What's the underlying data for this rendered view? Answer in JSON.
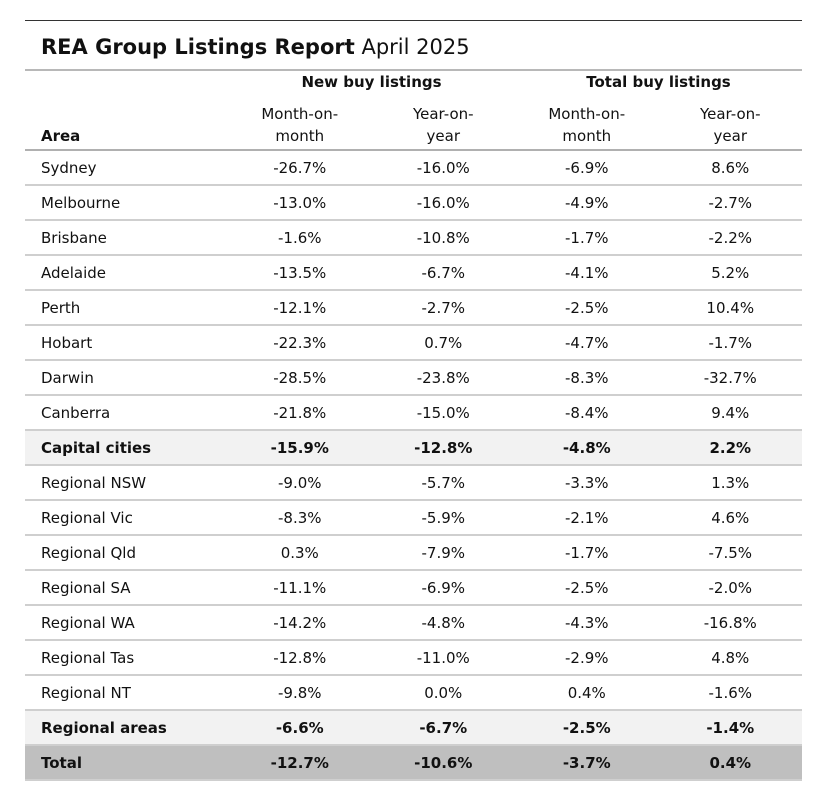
{
  "report": {
    "title_bold": "REA Group Listings Report",
    "title_light": "April 2025"
  },
  "headers": {
    "area": "Area",
    "groups": [
      "New buy listings",
      "Total buy listings"
    ],
    "sub": [
      [
        "Month-on-",
        "month"
      ],
      [
        "Year-on-",
        "year"
      ],
      [
        "Month-on-",
        "month"
      ],
      [
        "Year-on-",
        "year"
      ]
    ]
  },
  "rows": [
    {
      "area": "Sydney",
      "values": [
        "-26.7%",
        "-16.0%",
        "-6.9%",
        "8.6%"
      ],
      "kind": "normal"
    },
    {
      "area": "Melbourne",
      "values": [
        "-13.0%",
        "-16.0%",
        "-4.9%",
        "-2.7%"
      ],
      "kind": "normal"
    },
    {
      "area": "Brisbane",
      "values": [
        "-1.6%",
        "-10.8%",
        "-1.7%",
        "-2.2%"
      ],
      "kind": "normal"
    },
    {
      "area": "Adelaide",
      "values": [
        "-13.5%",
        "-6.7%",
        "-4.1%",
        "5.2%"
      ],
      "kind": "normal"
    },
    {
      "area": "Perth",
      "values": [
        "-12.1%",
        "-2.7%",
        "-2.5%",
        "10.4%"
      ],
      "kind": "normal"
    },
    {
      "area": "Hobart",
      "values": [
        "-22.3%",
        "0.7%",
        "-4.7%",
        "-1.7%"
      ],
      "kind": "normal"
    },
    {
      "area": "Darwin",
      "values": [
        "-28.5%",
        "-23.8%",
        "-8.3%",
        "-32.7%"
      ],
      "kind": "normal"
    },
    {
      "area": "Canberra",
      "values": [
        "-21.8%",
        "-15.0%",
        "-8.4%",
        "9.4%"
      ],
      "kind": "normal"
    },
    {
      "area": "Capital cities",
      "values": [
        "-15.9%",
        "-12.8%",
        "-4.8%",
        "2.2%"
      ],
      "kind": "subtotal"
    },
    {
      "area": "Regional NSW",
      "values": [
        "-9.0%",
        "-5.7%",
        "-3.3%",
        "1.3%"
      ],
      "kind": "normal"
    },
    {
      "area": "Regional Vic",
      "values": [
        "-8.3%",
        "-5.9%",
        "-2.1%",
        "4.6%"
      ],
      "kind": "normal"
    },
    {
      "area": "Regional Qld",
      "values": [
        "0.3%",
        "-7.9%",
        "-1.7%",
        "-7.5%"
      ],
      "kind": "normal"
    },
    {
      "area": "Regional SA",
      "values": [
        "-11.1%",
        "-6.9%",
        "-2.5%",
        "-2.0%"
      ],
      "kind": "normal"
    },
    {
      "area": "Regional WA",
      "values": [
        "-14.2%",
        "-4.8%",
        "-4.3%",
        "-16.8%"
      ],
      "kind": "normal"
    },
    {
      "area": "Regional Tas",
      "values": [
        "-12.8%",
        "-11.0%",
        "-2.9%",
        "4.8%"
      ],
      "kind": "normal"
    },
    {
      "area": "Regional NT",
      "values": [
        "-9.8%",
        "0.0%",
        "0.4%",
        "-1.6%"
      ],
      "kind": "normal"
    },
    {
      "area": "Regional areas",
      "values": [
        "-6.6%",
        "-6.7%",
        "-2.5%",
        "-1.4%"
      ],
      "kind": "subtotal"
    },
    {
      "area": "Total",
      "values": [
        "-12.7%",
        "-10.6%",
        "-3.7%",
        "0.4%"
      ],
      "kind": "total"
    }
  ]
}
